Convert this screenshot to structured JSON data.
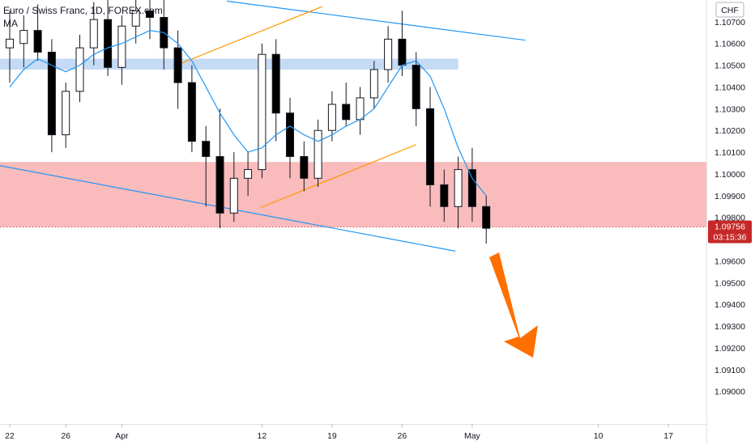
{
  "header": {
    "symbol_title": "Euro / Swiss Franc, 1D, FOREX.com",
    "indicator_label": "MA"
  },
  "currency_button": "CHF",
  "chart_data": {
    "type": "candlestick",
    "ylim": [
      1.0885,
      1.108
    ],
    "price_ticks": [
      "1.10700",
      "1.10600",
      "1.10500",
      "1.10400",
      "1.10300",
      "1.10200",
      "1.10100",
      "1.10000",
      "1.09900",
      "1.09800",
      "1.09600",
      "1.09500",
      "1.09400",
      "1.09300",
      "1.09200",
      "1.09100",
      "1.09000"
    ],
    "date_ticks": [
      {
        "label": "22",
        "index": 0
      },
      {
        "label": "26",
        "index": 4
      },
      {
        "label": "Apr",
        "index": 8
      },
      {
        "label": "12",
        "index": 18
      },
      {
        "label": "19",
        "index": 23
      },
      {
        "label": "26",
        "index": 28
      },
      {
        "label": "May",
        "index": 33
      },
      {
        "label": "10",
        "index": 42
      },
      {
        "label": "17",
        "index": 47
      }
    ],
    "last_price": {
      "value": "1.09756",
      "countdown": "03:15:36",
      "y": 1.09756
    },
    "colors": {
      "up": "#ffffff",
      "down": "#000000",
      "bullish_up_body": "#131722",
      "wick": "#131722",
      "ma": "#2196f3",
      "resistance_zone": "#bbd4f3",
      "support_zone": "#f8b4b4",
      "trendline_blue": "#2196f3",
      "trendline_orange": "#ff9800",
      "arrow": "#ff6f00",
      "badge": "#c62828"
    },
    "zones": [
      {
        "name": "resistance",
        "y_top": 1.1053,
        "y_bottom": 1.1048,
        "x_end_index": 32
      },
      {
        "name": "support",
        "y_top": 1.10055,
        "y_bottom": 1.09755
      }
    ],
    "trendlines": [
      {
        "color": "blue",
        "from": [
          15.5,
          1.10795
        ],
        "to": [
          36.8,
          1.10615
        ]
      },
      {
        "color": "orange",
        "from": [
          11.7,
          1.10495
        ],
        "to": [
          22.3,
          1.1077
        ]
      },
      {
        "color": "orange",
        "from": [
          17.9,
          1.09845
        ],
        "to": [
          29.0,
          1.10135
        ]
      },
      {
        "color": "blue",
        "from": [
          -2.5,
          1.1006
        ],
        "to": [
          31.8,
          1.09645
        ]
      }
    ],
    "candles": [
      {
        "o": 1.1058,
        "h": 1.1075,
        "l": 1.1042,
        "c": 1.1062
      },
      {
        "o": 1.106,
        "h": 1.1073,
        "l": 1.1049,
        "c": 1.1066
      },
      {
        "o": 1.1066,
        "h": 1.1078,
        "l": 1.1052,
        "c": 1.1056
      },
      {
        "o": 1.1056,
        "h": 1.1062,
        "l": 1.101,
        "c": 1.1018
      },
      {
        "o": 1.1018,
        "h": 1.1042,
        "l": 1.1012,
        "c": 1.1038
      },
      {
        "o": 1.1038,
        "h": 1.1064,
        "l": 1.1033,
        "c": 1.1058
      },
      {
        "o": 1.1058,
        "h": 1.1079,
        "l": 1.105,
        "c": 1.1071
      },
      {
        "o": 1.1071,
        "h": 1.108,
        "l": 1.1045,
        "c": 1.1049
      },
      {
        "o": 1.1049,
        "h": 1.1073,
        "l": 1.1041,
        "c": 1.1068
      },
      {
        "o": 1.1068,
        "h": 1.1082,
        "l": 1.106,
        "c": 1.1075
      },
      {
        "o": 1.1075,
        "h": 1.1082,
        "l": 1.1062,
        "c": 1.1072
      },
      {
        "o": 1.1072,
        "h": 1.108,
        "l": 1.1048,
        "c": 1.1058
      },
      {
        "o": 1.1058,
        "h": 1.1066,
        "l": 1.103,
        "c": 1.1042
      },
      {
        "o": 1.1042,
        "h": 1.105,
        "l": 1.101,
        "c": 1.1015
      },
      {
        "o": 1.1015,
        "h": 1.1022,
        "l": 1.0985,
        "c": 1.1008
      },
      {
        "o": 1.1008,
        "h": 1.103,
        "l": 1.0975,
        "c": 1.0982
      },
      {
        "o": 1.0982,
        "h": 1.101,
        "l": 1.0978,
        "c": 1.0998
      },
      {
        "o": 1.0998,
        "h": 1.101,
        "l": 1.099,
        "c": 1.1002
      },
      {
        "o": 1.1002,
        "h": 1.106,
        "l": 1.0998,
        "c": 1.1055
      },
      {
        "o": 1.1055,
        "h": 1.1062,
        "l": 1.1015,
        "c": 1.1028
      },
      {
        "o": 1.1028,
        "h": 1.1035,
        "l": 1.0998,
        "c": 1.1008
      },
      {
        "o": 1.1008,
        "h": 1.1015,
        "l": 1.0992,
        "c": 1.0998
      },
      {
        "o": 1.0998,
        "h": 1.1025,
        "l": 1.0994,
        "c": 1.102
      },
      {
        "o": 1.102,
        "h": 1.1038,
        "l": 1.1015,
        "c": 1.1032
      },
      {
        "o": 1.1032,
        "h": 1.1042,
        "l": 1.1022,
        "c": 1.1025
      },
      {
        "o": 1.1025,
        "h": 1.104,
        "l": 1.1018,
        "c": 1.1035
      },
      {
        "o": 1.1035,
        "h": 1.1052,
        "l": 1.103,
        "c": 1.1048
      },
      {
        "o": 1.1048,
        "h": 1.1068,
        "l": 1.1042,
        "c": 1.1062
      },
      {
        "o": 1.1062,
        "h": 1.1075,
        "l": 1.1045,
        "c": 1.105
      },
      {
        "o": 1.105,
        "h": 1.1056,
        "l": 1.1022,
        "c": 1.103
      },
      {
        "o": 1.103,
        "h": 1.104,
        "l": 1.0985,
        "c": 1.0995
      },
      {
        "o": 1.0995,
        "h": 1.1002,
        "l": 1.0978,
        "c": 1.0985
      },
      {
        "o": 1.0985,
        "h": 1.1008,
        "l": 1.0975,
        "c": 1.1002
      },
      {
        "o": 1.1002,
        "h": 1.1012,
        "l": 1.0978,
        "c": 1.0985
      },
      {
        "o": 1.0985,
        "h": 1.099,
        "l": 1.0968,
        "c": 1.0975
      }
    ],
    "ma": [
      1.104,
      1.1048,
      1.1053,
      1.105,
      1.1047,
      1.105,
      1.1055,
      1.1058,
      1.106,
      1.1063,
      1.1066,
      1.1065,
      1.106,
      1.1052,
      1.104,
      1.1028,
      1.1018,
      1.101,
      1.1012,
      1.1018,
      1.1022,
      1.1018,
      1.1015,
      1.1018,
      1.1022,
      1.1025,
      1.103,
      1.104,
      1.105,
      1.1052,
      1.1045,
      1.103,
      1.1012,
      1.0998,
      1.099
    ]
  }
}
